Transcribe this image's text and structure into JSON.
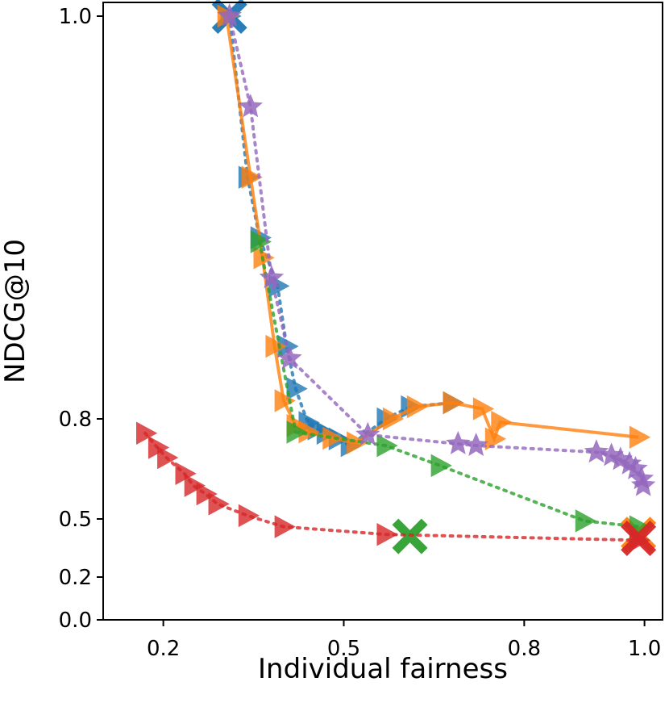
{
  "chart_data": {
    "type": "scatter",
    "title": "",
    "xlabel": "Individual fairness",
    "ylabel": "NDCG@10",
    "grid": false,
    "legend": "none",
    "xticks": [
      {
        "value": 0.2,
        "label": "0.2"
      },
      {
        "value": 0.5,
        "label": "0.5"
      },
      {
        "value": 0.8,
        "label": "0.8"
      },
      {
        "value": 1.0,
        "label": "1.0"
      }
    ],
    "yticks": [
      {
        "value": 0.0,
        "label": "0.0"
      },
      {
        "value": 0.2,
        "label": "0.2"
      },
      {
        "value": 0.5,
        "label": "0.5"
      },
      {
        "value": 0.8,
        "label": "0.8"
      },
      {
        "value": 1.0,
        "label": "1.0"
      }
    ],
    "series": [
      {
        "name": "blue",
        "color": "#1f77b4",
        "linestyle": "dotted",
        "marker": "triangle-right",
        "points": [
          [
            0.31,
            1.0
          ],
          [
            0.34,
            0.92
          ],
          [
            0.36,
            0.89
          ],
          [
            0.39,
            0.866
          ],
          [
            0.405,
            0.836
          ],
          [
            0.42,
            0.815
          ],
          [
            0.44,
            0.789
          ],
          [
            0.455,
            0.77
          ],
          [
            0.47,
            0.757
          ],
          [
            0.49,
            0.74
          ],
          [
            0.51,
            0.72
          ],
          [
            0.57,
            0.8
          ],
          [
            0.61,
            0.806
          ],
          [
            0.68,
            0.808
          ]
        ],
        "end_marker": [
          0.31,
          1.0
        ]
      },
      {
        "name": "orange",
        "color": "#ff7f0e",
        "linestyle": "solid",
        "marker": "triangle-right",
        "points": [
          [
            0.305,
            1.0
          ],
          [
            0.345,
            0.92
          ],
          [
            0.365,
            0.88
          ],
          [
            0.385,
            0.836
          ],
          [
            0.4,
            0.809
          ],
          [
            0.42,
            0.78
          ],
          [
            0.44,
            0.761
          ],
          [
            0.48,
            0.742
          ],
          [
            0.52,
            0.728
          ],
          [
            0.58,
            0.8
          ],
          [
            0.62,
            0.806
          ],
          [
            0.68,
            0.808
          ],
          [
            0.73,
            0.805
          ],
          [
            0.75,
            0.74
          ],
          [
            0.76,
            0.79
          ],
          [
            0.99,
            0.745
          ]
        ],
        "end_marker": [
          0.99,
          0.42
        ]
      },
      {
        "name": "green",
        "color": "#2ca02c",
        "linestyle": "dotted",
        "marker": "triangle-right",
        "points": [
          [
            0.36,
            0.888
          ],
          [
            0.42,
            0.76
          ],
          [
            0.57,
            0.72
          ],
          [
            0.66,
            0.66
          ],
          [
            0.9,
            0.49
          ],
          [
            0.99,
            0.46
          ]
        ],
        "end_marker": [
          0.61,
          0.41
        ]
      },
      {
        "name": "red",
        "color": "#d62728",
        "linestyle": "dotted",
        "marker": "triangle-right",
        "points": [
          [
            0.17,
            0.757
          ],
          [
            0.19,
            0.714
          ],
          [
            0.205,
            0.684
          ],
          [
            0.235,
            0.636
          ],
          [
            0.25,
            0.6
          ],
          [
            0.27,
            0.575
          ],
          [
            0.29,
            0.545
          ],
          [
            0.34,
            0.51
          ],
          [
            0.4,
            0.46
          ],
          [
            0.57,
            0.42
          ],
          [
            0.99,
            0.39
          ]
        ],
        "end_marker": [
          0.99,
          0.4
        ]
      },
      {
        "name": "purple",
        "color": "#9467bd",
        "linestyle": "dotted",
        "marker": "star",
        "points": [
          [
            0.31,
            1.0
          ],
          [
            0.345,
            0.955
          ],
          [
            0.38,
            0.87
          ],
          [
            0.41,
            0.83
          ],
          [
            0.54,
            0.752
          ],
          [
            0.69,
            0.725
          ],
          [
            0.72,
            0.72
          ],
          [
            0.92,
            0.7
          ],
          [
            0.945,
            0.69
          ],
          [
            0.96,
            0.678
          ],
          [
            0.975,
            0.665
          ],
          [
            0.985,
            0.65
          ],
          [
            0.995,
            0.62
          ],
          [
            0.998,
            0.6
          ]
        ],
        "end_marker": null
      }
    ]
  }
}
